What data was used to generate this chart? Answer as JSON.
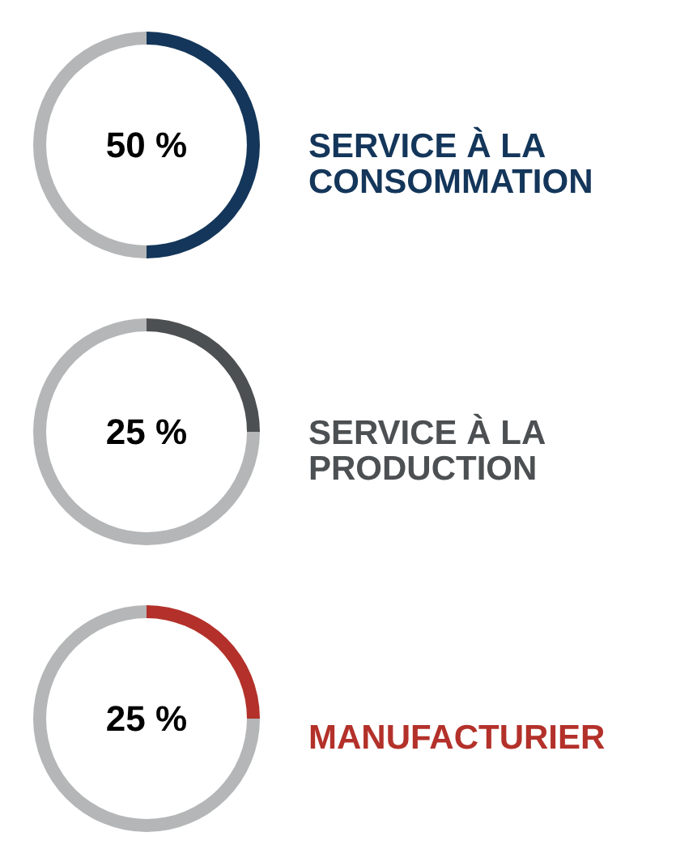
{
  "chart_data": [
    {
      "type": "donut",
      "categories": [
        "SERVICE À LA CONSOMMATION",
        null
      ],
      "values": [
        50,
        50
      ],
      "colors": [
        "#14365a",
        "#b4b6b7"
      ],
      "annotations": [
        "50 %"
      ]
    },
    {
      "type": "donut",
      "categories": [
        "SERVICE À LA PRODUCTION",
        null
      ],
      "values": [
        25,
        75
      ],
      "colors": [
        "#4d5052",
        "#b4b6b7"
      ],
      "annotations": [
        "25 %"
      ]
    },
    {
      "type": "donut",
      "categories": [
        "MANUFACTURIER",
        null
      ],
      "values": [
        25,
        75
      ],
      "colors": [
        "#b3312a",
        "#b4b6b7"
      ],
      "annotations": [
        "25 %"
      ]
    }
  ]
}
